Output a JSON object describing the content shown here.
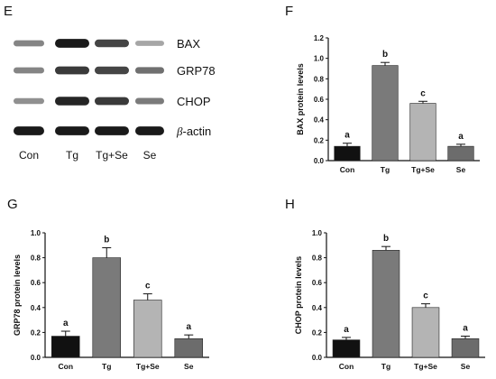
{
  "panels": {
    "E": "E",
    "F": "F",
    "G": "G",
    "H": "H"
  },
  "blot": {
    "proteins": [
      "BAX",
      "GRP78",
      "CHOP",
      "β-actin"
    ],
    "beta_symbol": "β",
    "beta_suffix": "-actin",
    "lanes": [
      "Con",
      "Tg",
      "Tg+Se",
      "Se"
    ],
    "intensities": [
      [
        0.45,
        0.95,
        0.75,
        0.3
      ],
      [
        0.45,
        0.8,
        0.75,
        0.55
      ],
      [
        0.4,
        0.9,
        0.8,
        0.5
      ],
      [
        0.95,
        0.95,
        0.95,
        0.95
      ]
    ]
  },
  "chart_data": [
    {
      "type": "bar",
      "panel": "F",
      "categories": [
        "Con",
        "Tg",
        "Tg+Se",
        "Se"
      ],
      "values": [
        0.14,
        0.93,
        0.56,
        0.14
      ],
      "errors": [
        0.03,
        0.03,
        0.02,
        0.02
      ],
      "letters": [
        "a",
        "b",
        "c",
        "a"
      ],
      "ylabel": "BAX protein levels",
      "ylim": [
        0,
        1.2
      ],
      "yticks": [
        "0.0",
        "0.2",
        "0.4",
        "0.6",
        "0.8",
        "1.0",
        "1.2"
      ],
      "bar_colors": [
        "#111111",
        "#7a7a7a",
        "#b4b4b4",
        "#6c6c6c"
      ]
    },
    {
      "type": "bar",
      "panel": "G",
      "categories": [
        "Con",
        "Tg",
        "Tg+Se",
        "Se"
      ],
      "values": [
        0.17,
        0.8,
        0.46,
        0.15
      ],
      "errors": [
        0.04,
        0.08,
        0.05,
        0.03
      ],
      "letters": [
        "a",
        "b",
        "c",
        "a"
      ],
      "ylabel": "GRP78 protein levels",
      "ylim": [
        0,
        1.0
      ],
      "yticks": [
        "0.0",
        "0.2",
        "0.4",
        "0.6",
        "0.8",
        "1.0"
      ],
      "bar_colors": [
        "#111111",
        "#7a7a7a",
        "#b4b4b4",
        "#6c6c6c"
      ]
    },
    {
      "type": "bar",
      "panel": "H",
      "categories": [
        "Con",
        "Tg",
        "Tg+Se",
        "Se"
      ],
      "values": [
        0.14,
        0.86,
        0.4,
        0.15
      ],
      "errors": [
        0.02,
        0.03,
        0.03,
        0.02
      ],
      "letters": [
        "a",
        "b",
        "c",
        "a"
      ],
      "ylabel": "CHOP protein levels",
      "ylim": [
        0,
        1.0
      ],
      "yticks": [
        "0.0",
        "0.2",
        "0.4",
        "0.6",
        "0.8",
        "1.0"
      ],
      "bar_colors": [
        "#111111",
        "#7a7a7a",
        "#b4b4b4",
        "#6c6c6c"
      ]
    }
  ]
}
